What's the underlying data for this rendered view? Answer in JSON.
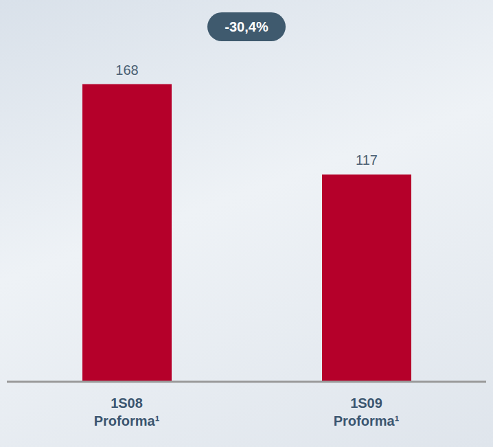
{
  "chart_data": {
    "type": "bar",
    "categories": [
      "1S08 Proforma¹",
      "1S09 Proforma¹"
    ],
    "values": [
      168,
      117
    ],
    "color": "#b5002a",
    "ylim": [
      0,
      200
    ],
    "data_labels": true,
    "tick_labels": "x",
    "annotations": [
      "-30,4%"
    ]
  }
}
